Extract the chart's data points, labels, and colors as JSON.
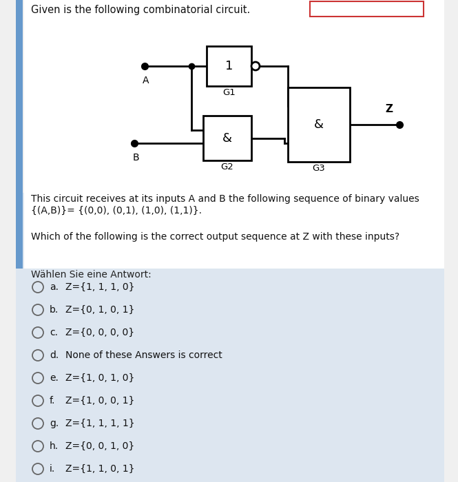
{
  "title": "Given is the following combinatorial circuit.",
  "bg_color": "#f0f0f0",
  "card_bg": "#ffffff",
  "panel_bg": "#dde6f0",
  "text_block1_line1": "This circuit receives at its inputs A and B the following sequence of binary values",
  "text_block1_line2": "{(A,B)}= {(0,0), (0,1), (1,0), (1,1)}.",
  "text_block2": "Which of the following is the correct output sequence at Z with these inputs?",
  "section_label": "Wählen Sie eine Antwort:",
  "options": [
    {
      "label": "a.",
      "text": "Z={1, 1, 1, 0}"
    },
    {
      "label": "b.",
      "text": "Z={0, 1, 0, 1}"
    },
    {
      "label": "c.",
      "text": "Z={0, 0, 0, 0}"
    },
    {
      "label": "d.",
      "text": "None of these Answers is correct"
    },
    {
      "label": "e.",
      "text": "Z={1, 0, 1, 0}"
    },
    {
      "label": "f.",
      "text": "Z={1, 0, 0, 1}"
    },
    {
      "label": "g.",
      "text": "Z={1, 1, 1, 1}"
    },
    {
      "label": "h.",
      "text": "Z={0, 0, 1, 0}"
    },
    {
      "label": "i.",
      "text": "Z={1, 1, 0, 1}"
    }
  ],
  "gate_box_color": "#ffffff",
  "gate_box_edge": "#000000",
  "line_color": "#000000",
  "dot_color": "#000000",
  "red_box_color": "#cc3333"
}
